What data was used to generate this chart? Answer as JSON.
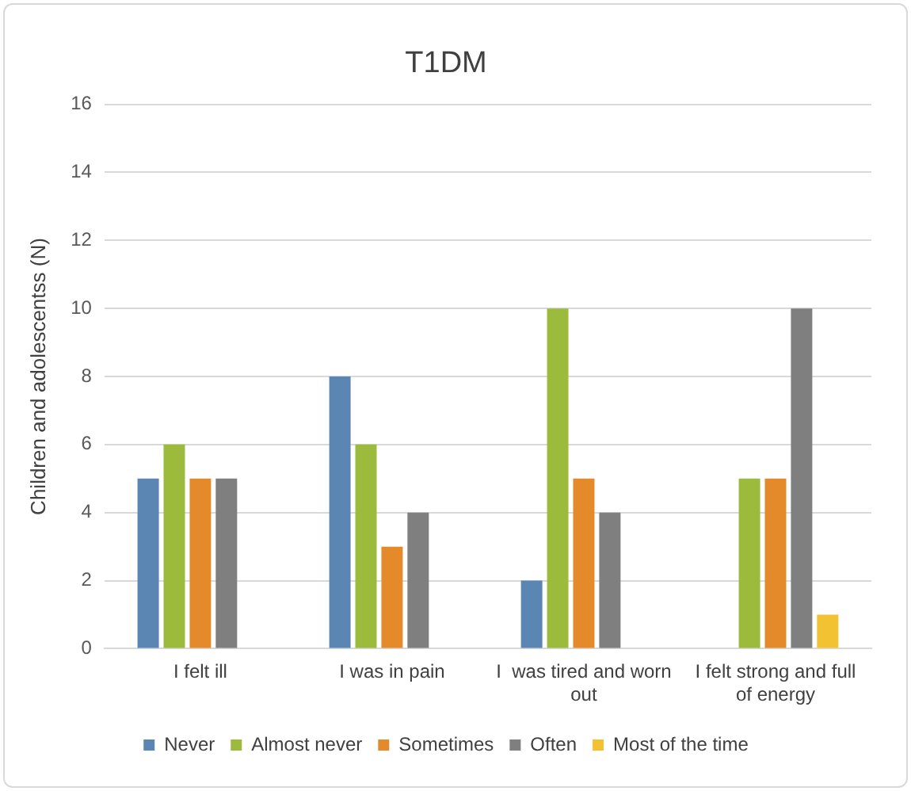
{
  "chart_data": {
    "type": "bar",
    "title": "T1DM",
    "ylabel": "Children and adolescentss (N)",
    "categories": [
      "I felt ill",
      "I was in pain",
      "I  was tired and worn out",
      "I felt strong and full of energy"
    ],
    "series": [
      {
        "name": "Never",
        "color": "#5b86b3",
        "values": [
          5,
          8,
          2,
          0
        ]
      },
      {
        "name": "Almost never",
        "color": "#9cba3c",
        "values": [
          6,
          6,
          10,
          5
        ]
      },
      {
        "name": "Sometimes",
        "color": "#e58a2a",
        "values": [
          5,
          3,
          5,
          5
        ]
      },
      {
        "name": "Often",
        "color": "#7f7f7f",
        "values": [
          5,
          4,
          4,
          10
        ]
      },
      {
        "name": "Most of the time",
        "color": "#f2c232",
        "values": [
          0,
          0,
          0,
          1
        ]
      }
    ],
    "ylim": [
      0,
      16
    ],
    "yticks": [
      0,
      2,
      4,
      6,
      8,
      10,
      12,
      14,
      16
    ],
    "grid": "y",
    "legend": "bottom"
  }
}
